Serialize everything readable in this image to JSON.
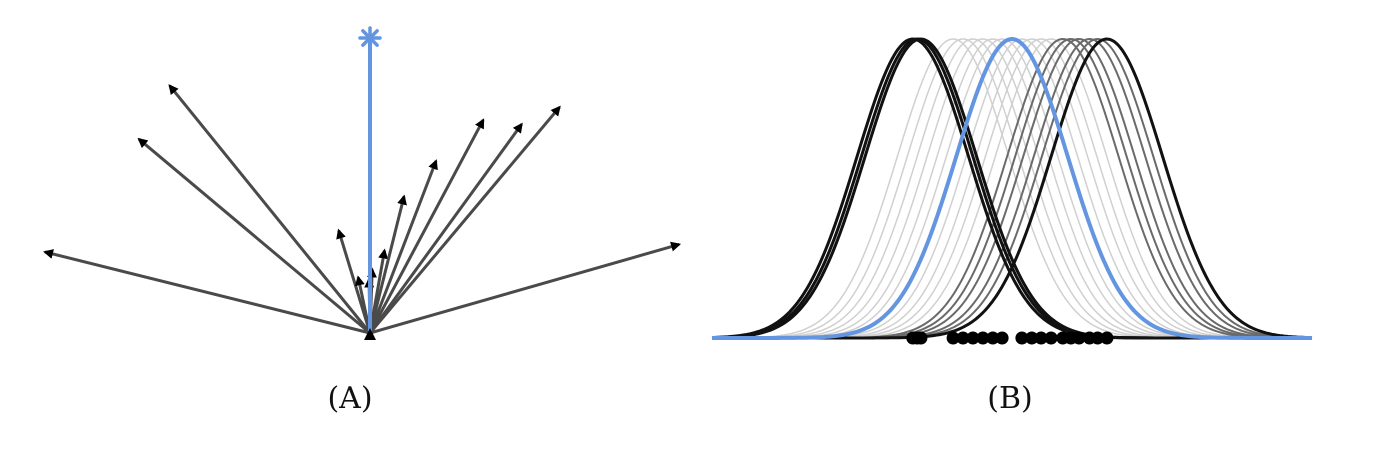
{
  "panels": [
    {
      "label": "(A)"
    },
    {
      "label": "(B)"
    }
  ],
  "colors": {
    "accent": "#6495e0",
    "arrow": "#4a4a4a",
    "arrowhead": "#000000",
    "curve_dark": "#111111",
    "curve_mid": "#6a6a6a",
    "curve_light": "#d0d0d0",
    "point": "#000000"
  },
  "panel_a": {
    "center_marker": "asterisk",
    "arrow_count": 14,
    "arrow_angles_deg": [
      166,
      140,
      129,
      107,
      102,
      91,
      88,
      80,
      76,
      69,
      62,
      54,
      50,
      16
    ],
    "arrow_relative_lengths": [
      1.0,
      0.9,
      0.95,
      0.32,
      0.17,
      0.16,
      0.19,
      0.25,
      0.42,
      0.55,
      0.72,
      0.77,
      0.88,
      0.96
    ]
  },
  "panel_b": {
    "highlight_peak": 0.0,
    "curve_peaks_dark": [
      -1.6,
      -1.47,
      -1.53,
      1.53
    ],
    "curve_peaks_mid": [
      0.82,
      0.95,
      1.08,
      1.25,
      1.38
    ],
    "curve_peaks_light": [
      -0.95,
      -0.79,
      -0.63,
      -0.47,
      -0.31,
      -0.16,
      0.16,
      0.32,
      0.47,
      0.63
    ]
  }
}
